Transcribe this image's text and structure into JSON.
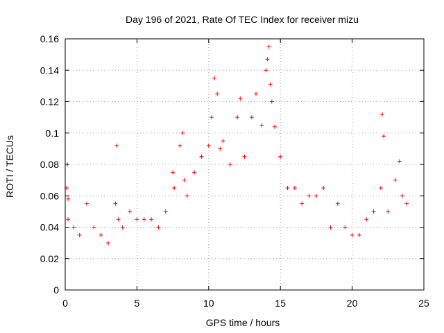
{
  "chart_data": {
    "type": "scatter",
    "title": "Day 196 of 2021, Rate Of TEC Index for receiver mizu",
    "xlabel": "GPS time / hours",
    "ylabel": "ROTI / TECUs",
    "xlim": [
      0,
      25
    ],
    "ylim": [
      0,
      0.16
    ],
    "x_ticks": [
      0,
      5,
      10,
      15,
      20,
      25
    ],
    "x_tick_labels": [
      "0",
      "5",
      "10",
      "15",
      "20",
      "25"
    ],
    "y_ticks": [
      0,
      0.02,
      0.04,
      0.06,
      0.08,
      0.1,
      0.12,
      0.14,
      0.16
    ],
    "y_tick_labels": [
      "0",
      "0.02",
      "0.04",
      "0.06",
      "0.08",
      "0.1",
      "0.12",
      "0.14",
      "0.16"
    ],
    "grid": true,
    "marker": "+",
    "color": "#ff0000",
    "series": [
      {
        "x": [
          0.1,
          0.15,
          0.2,
          0.2,
          0.6,
          1.0,
          1.5,
          2.0,
          2.5,
          3.0,
          3.5,
          3.6,
          3.7,
          4.0,
          4.5,
          5.0,
          5.5,
          6.0,
          6.5,
          7.0,
          7.5,
          7.6,
          8.0,
          8.2,
          8.3,
          8.5,
          9.0,
          9.5,
          10.0,
          10.2,
          10.4,
          10.6,
          10.8,
          11.0,
          11.5,
          12.0,
          12.2,
          12.5,
          13.0,
          13.3,
          13.7,
          14.0,
          14.1,
          14.2,
          14.3,
          14.4,
          14.6,
          15.0,
          15.5,
          16.0,
          16.5,
          17.0,
          17.5,
          18.0,
          18.5,
          19.0,
          19.5,
          20.0,
          20.5,
          21.0,
          21.5,
          22.0,
          22.1,
          22.2,
          22.5,
          23.0,
          23.3,
          23.5,
          23.8
        ],
        "y": [
          0.065,
          0.08,
          0.058,
          0.045,
          0.04,
          0.035,
          0.055,
          0.04,
          0.035,
          0.03,
          0.055,
          0.092,
          0.045,
          0.04,
          0.05,
          0.045,
          0.045,
          0.045,
          0.04,
          0.05,
          0.075,
          0.065,
          0.092,
          0.1,
          0.07,
          0.06,
          0.075,
          0.085,
          0.092,
          0.11,
          0.135,
          0.125,
          0.09,
          0.095,
          0.08,
          0.11,
          0.122,
          0.085,
          0.11,
          0.125,
          0.105,
          0.14,
          0.147,
          0.155,
          0.131,
          0.12,
          0.104,
          0.085,
          0.065,
          0.065,
          0.055,
          0.06,
          0.06,
          0.065,
          0.04,
          0.055,
          0.04,
          0.035,
          0.035,
          0.045,
          0.05,
          0.065,
          0.112,
          0.098,
          0.05,
          0.07,
          0.082,
          0.06,
          0.055
        ]
      }
    ]
  }
}
